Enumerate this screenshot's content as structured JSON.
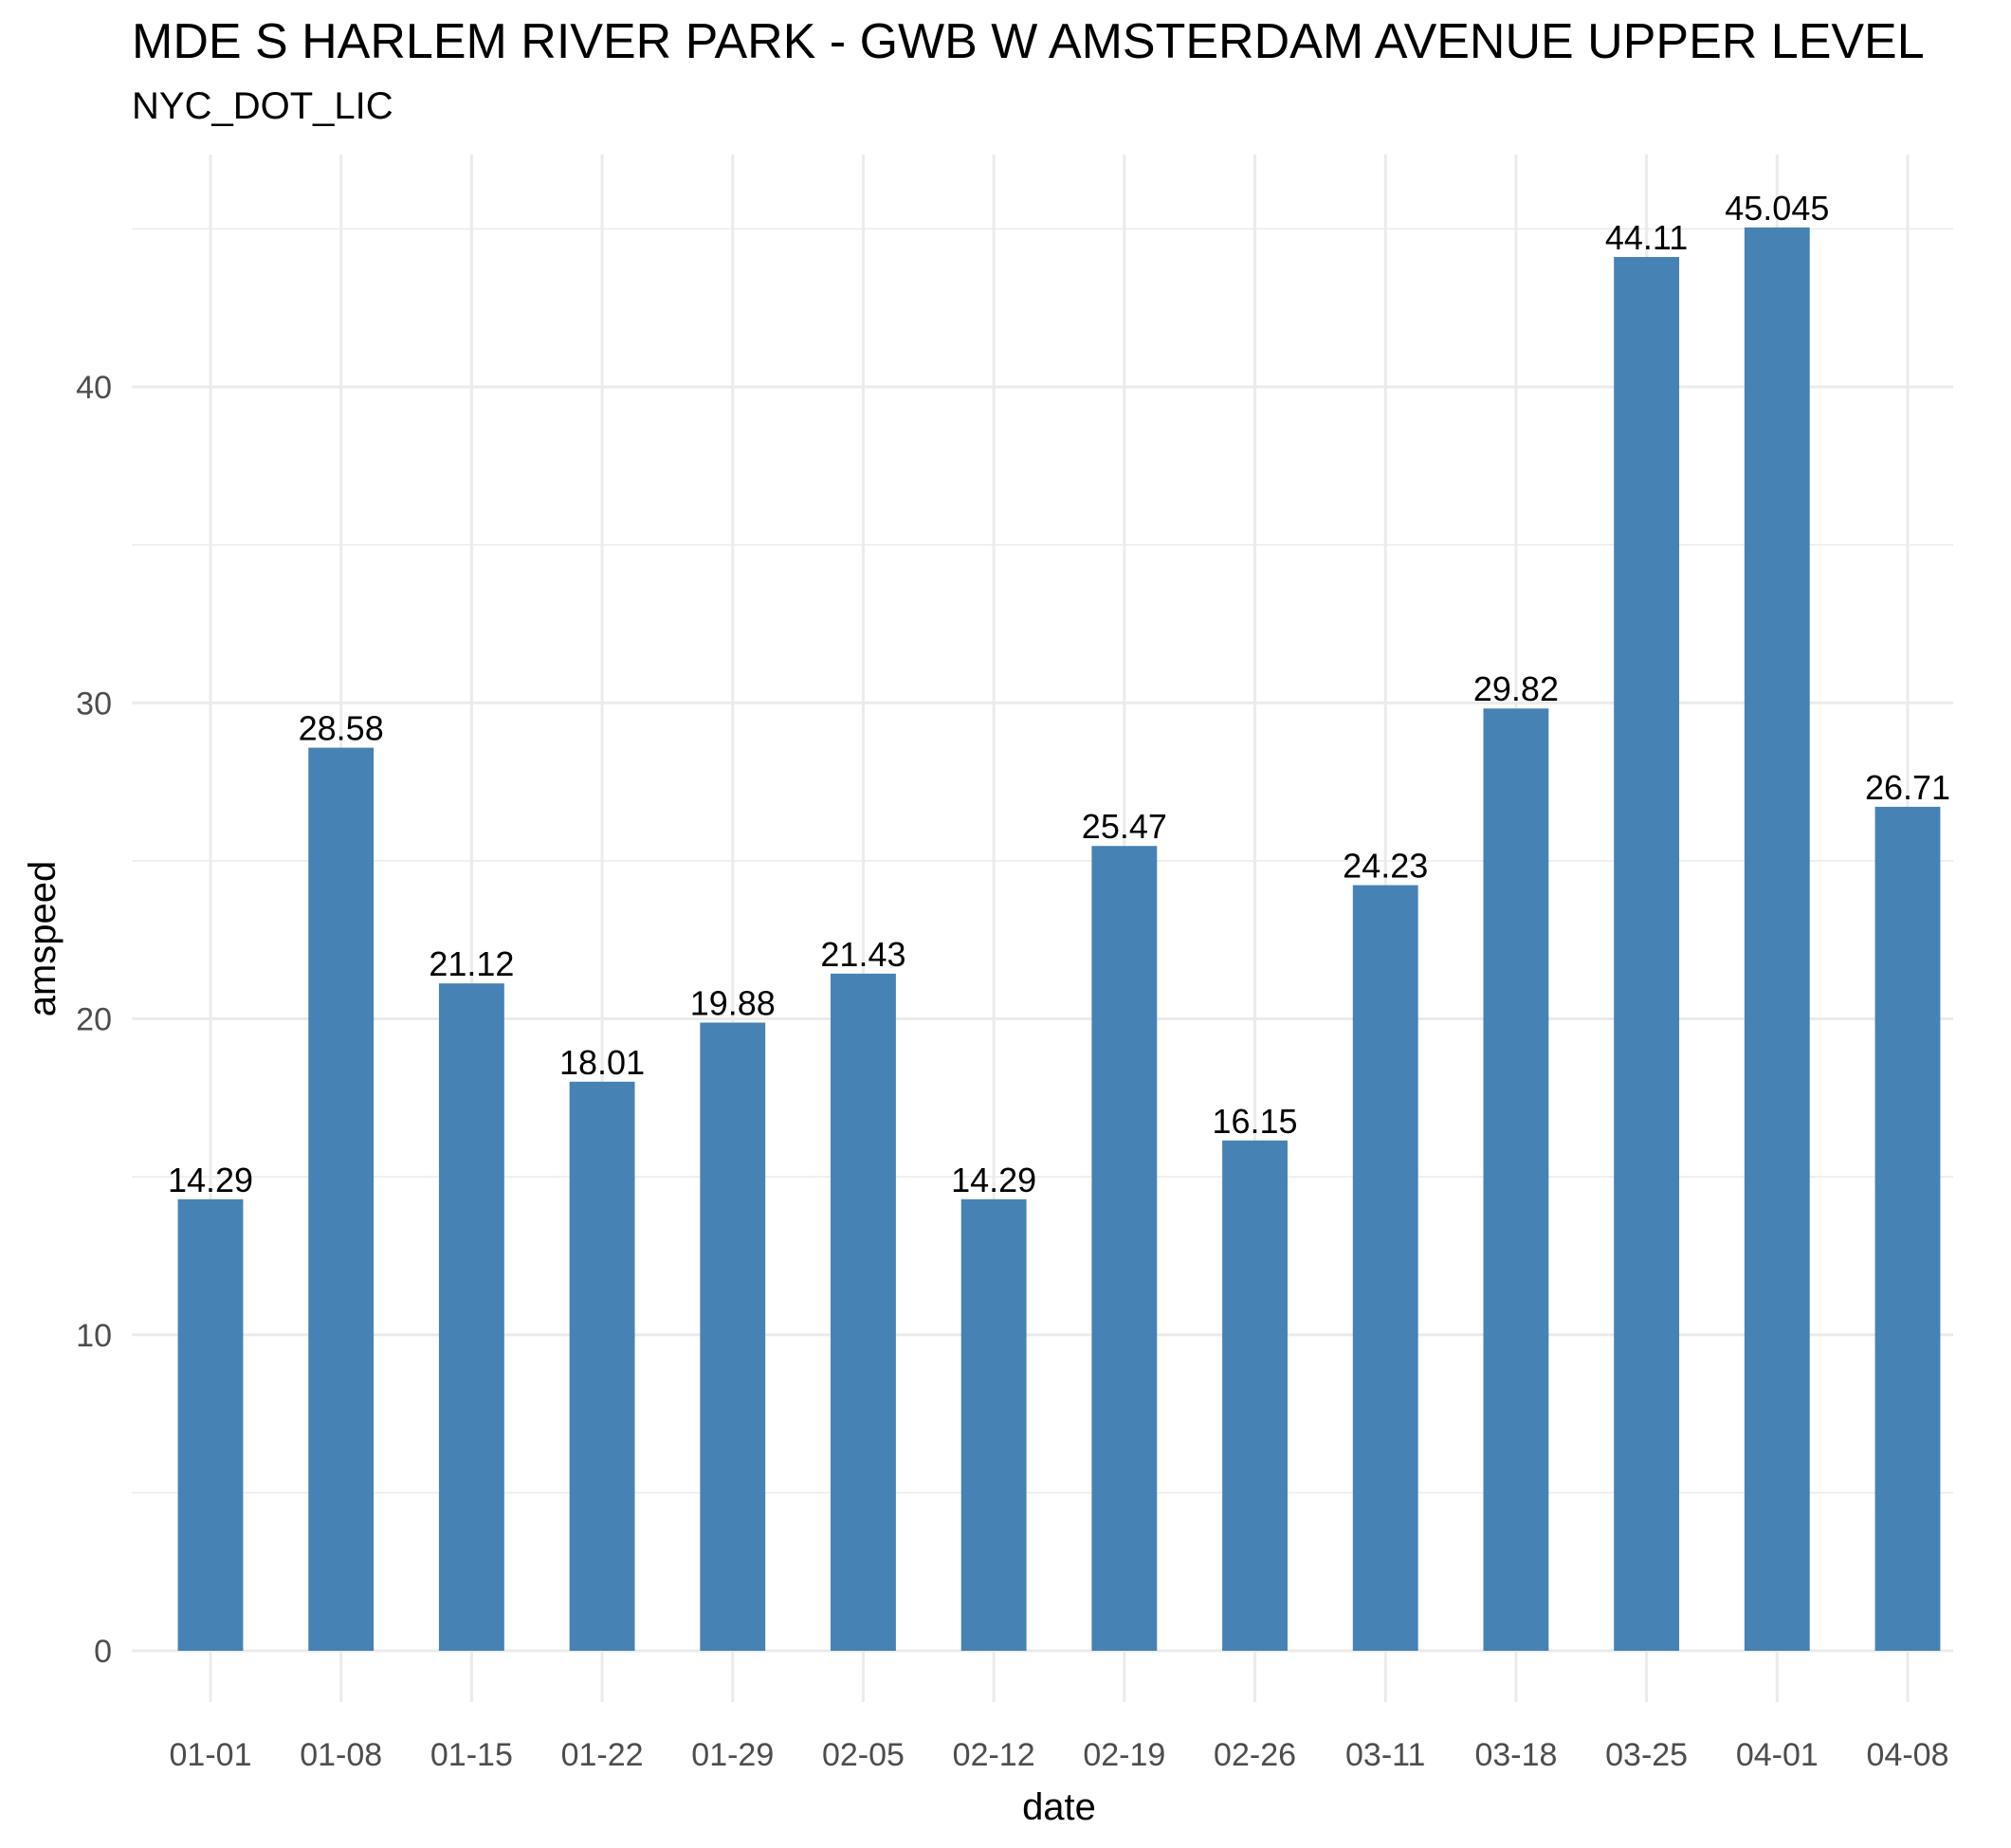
{
  "chart_data": {
    "type": "bar",
    "title": "MDE S HARLEM RIVER PARK - GWB W AMSTERDAM AVENUE UPPER LEVEL",
    "subtitle": "NYC_DOT_LIC",
    "xlabel": "date",
    "ylabel": "amspeed",
    "categories": [
      "01-01",
      "01-08",
      "01-15",
      "01-22",
      "01-29",
      "02-05",
      "02-12",
      "02-19",
      "02-26",
      "03-11",
      "03-18",
      "03-25",
      "04-01",
      "04-08"
    ],
    "values": [
      14.29,
      28.58,
      21.12,
      18.01,
      19.88,
      21.43,
      14.29,
      25.47,
      16.15,
      24.23,
      29.82,
      44.11,
      45.045,
      26.71
    ],
    "data_labels": [
      "14.29",
      "28.58",
      "21.12",
      "18.01",
      "19.88",
      "21.43",
      "14.29",
      "25.47",
      "16.15",
      "24.23",
      "29.82",
      "44.11",
      "45.045",
      "26.71"
    ],
    "y_ticks": [
      0,
      10,
      20,
      30,
      40
    ],
    "ylim": [
      0,
      47.3
    ],
    "grid": true,
    "legend": "none",
    "bar_color": "#4682B4",
    "grid_color": "#EBEBEB"
  }
}
